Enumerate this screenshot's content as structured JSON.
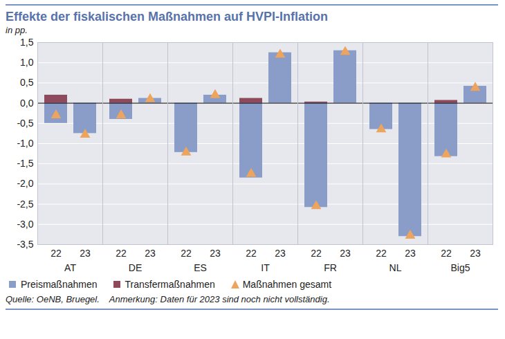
{
  "chart_data": {
    "type": "bar",
    "title": "Effekte der fiskalischen Maßnahmen auf HVPI-Inflation",
    "subtitle": "in pp.",
    "annotations": [
      "Quelle: OeNB, Bruegel.",
      "Anmerkung: Daten für 2023 sind noch nicht vollständig."
    ],
    "groups": [
      "AT",
      "DE",
      "ES",
      "IT",
      "FR",
      "NL",
      "Big5"
    ],
    "categories": [
      "22",
      "23",
      "22",
      "23",
      "22",
      "23",
      "22",
      "23",
      "22",
      "23",
      "22",
      "23",
      "22",
      "23"
    ],
    "stacked": true,
    "grid": true,
    "legend": "bottom",
    "ylim": [
      -3.5,
      1.5
    ],
    "yticks": [
      {
        "value": -3.5,
        "label": "-3,5"
      },
      {
        "value": -3,
        "label": "-3,0"
      },
      {
        "value": -2.5,
        "label": "-2,5"
      },
      {
        "value": -2,
        "label": "-2,0"
      },
      {
        "value": -1.5,
        "label": "-1,5"
      },
      {
        "value": -1,
        "label": "-1,0"
      },
      {
        "value": -0.5,
        "label": "-0,5"
      },
      {
        "value": 0,
        "label": "0,0"
      },
      {
        "value": 0.5,
        "label": "0,5"
      },
      {
        "value": 1,
        "label": "1,0"
      },
      {
        "value": 1.5,
        "label": "1,5"
      }
    ],
    "series": [
      {
        "name": "Preismaßnahmen",
        "type": "bar",
        "color": "#8a9cc8",
        "values": [
          -0.5,
          -0.75,
          -0.4,
          0.12,
          -1.22,
          0.2,
          -1.85,
          1.25,
          -2.58,
          1.3,
          -0.65,
          -3.3,
          -1.32,
          0.42
        ]
      },
      {
        "name": "Transfermaßnahmen",
        "type": "bar",
        "color": "#8e4a5b",
        "values": [
          0.2,
          0,
          0.1,
          0,
          0,
          0,
          0.12,
          0,
          0.03,
          0,
          0,
          0,
          0.07,
          0
        ]
      },
      {
        "name": "Maßnahmen gesamt",
        "type": "scatter",
        "marker": "triangle",
        "color": "#eda55e",
        "values": [
          -0.3,
          -0.78,
          -0.3,
          0.1,
          -1.22,
          0.2,
          -1.75,
          1.2,
          -2.55,
          1.27,
          -0.65,
          -3.28,
          -1.27,
          0.38
        ]
      }
    ]
  }
}
